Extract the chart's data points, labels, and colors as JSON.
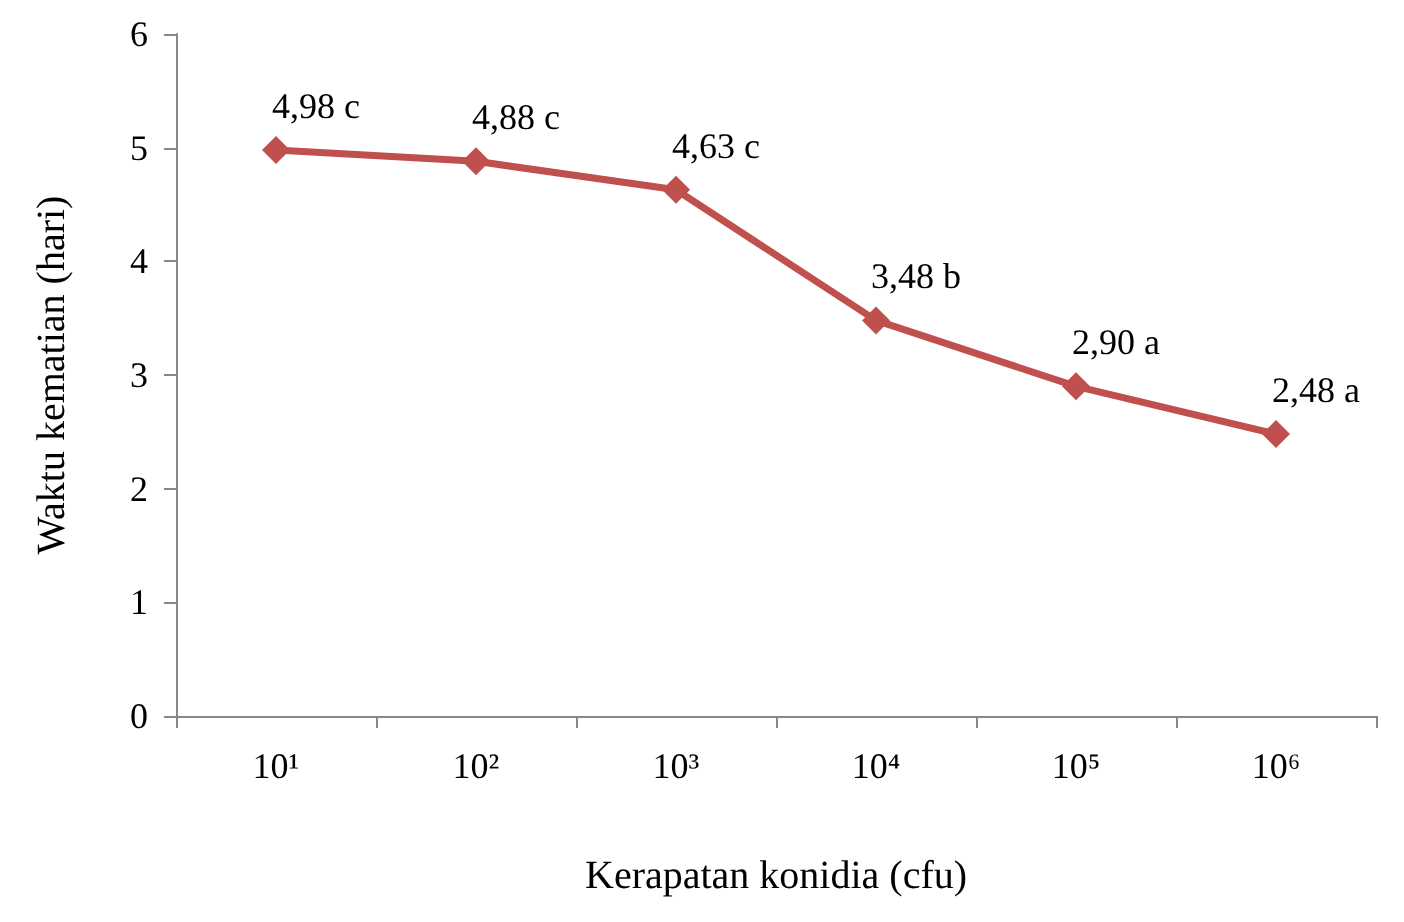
{
  "chart_data": {
    "type": "line",
    "xlabel": "Kerapatan konidia (cfu)",
    "ylabel": "Waktu kematian (hari)",
    "categories": [
      "10¹",
      "10²",
      "10³",
      "10⁴",
      "10⁵",
      "10⁶"
    ],
    "series": [
      {
        "color": "#c0504d",
        "values": [
          4.98,
          4.88,
          4.63,
          3.48,
          2.9,
          2.48
        ],
        "value_labels": [
          "4,98 c",
          "4,88 c",
          "4,63 c",
          "3,48 b",
          "2,90 a",
          "2,48 a"
        ]
      }
    ],
    "ylim": [
      0,
      6
    ],
    "yticks": [
      0,
      1,
      2,
      3,
      4,
      5,
      6
    ],
    "grid": false,
    "marker": "diamond",
    "line_style": "solid"
  }
}
